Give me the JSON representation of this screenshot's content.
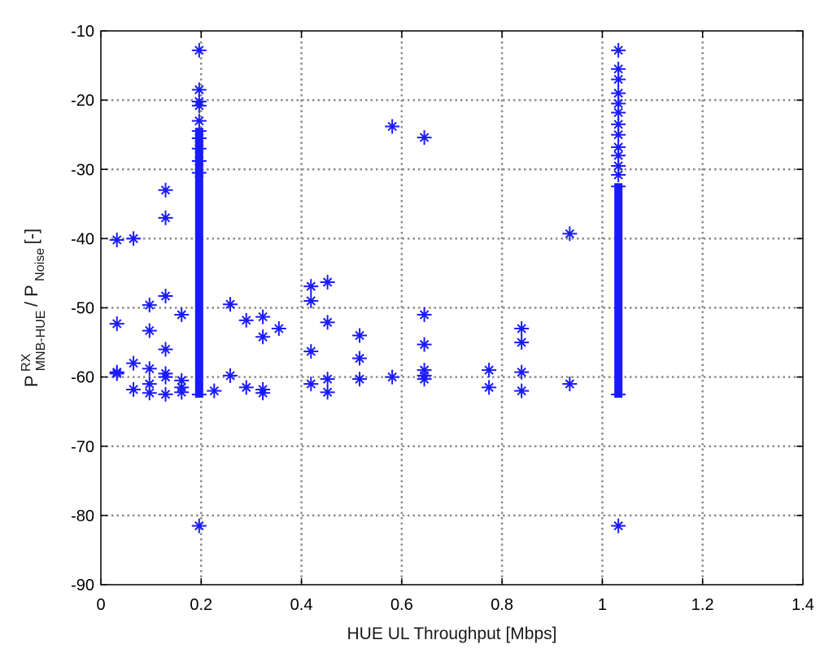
{
  "chart_data": {
    "type": "scatter",
    "title": "",
    "xlabel": "HUE UL Throughput [Mbps]",
    "ylabel": {
      "base": "P",
      "sup": "RX",
      "sub": "MNB-HUE",
      "slash": "/ P",
      "sub2": "Noise",
      "unit": " [-]"
    },
    "xlim": [
      0,
      1.4
    ],
    "ylim": [
      -90,
      -10
    ],
    "xticks": [
      "0",
      "0.2",
      "0.4",
      "0.6",
      "0.8",
      "1",
      "1.2",
      "1.4"
    ],
    "yticks": [
      "-10",
      "-20",
      "-30",
      "-40",
      "-50",
      "-60",
      "-70",
      "-80",
      "-90"
    ],
    "grid": true,
    "marker_color": "#1a1aff",
    "grid_color": "#8c8c8c",
    "columns": [
      {
        "x": 0.196,
        "y_from": -63,
        "y_to": -24
      },
      {
        "x": 1.032,
        "y_from": -63,
        "y_to": -32
      }
    ],
    "points": [
      [
        0.196,
        -12.8
      ],
      [
        0.196,
        -18.5
      ],
      [
        0.196,
        -20.2
      ],
      [
        0.196,
        -20.8
      ],
      [
        0.196,
        -23.0
      ],
      [
        0.196,
        -25.5
      ],
      [
        0.196,
        -27.0
      ],
      [
        0.196,
        -28.8
      ],
      [
        0.196,
        -30.5
      ],
      [
        0.196,
        -81.5
      ],
      [
        1.032,
        -12.8
      ],
      [
        1.032,
        -15.5
      ],
      [
        1.032,
        -17.0
      ],
      [
        1.032,
        -19.0
      ],
      [
        1.032,
        -20.5
      ],
      [
        1.032,
        -21.8
      ],
      [
        1.032,
        -23.5
      ],
      [
        1.032,
        -25.0
      ],
      [
        1.032,
        -26.8
      ],
      [
        1.032,
        -28.0
      ],
      [
        1.032,
        -29.5
      ],
      [
        1.032,
        -30.8
      ],
      [
        1.032,
        -81.5
      ],
      [
        0.032,
        -40.2
      ],
      [
        0.032,
        -52.3
      ],
      [
        0.032,
        -59.3
      ],
      [
        0.032,
        -59.5
      ],
      [
        0.065,
        -40.0
      ],
      [
        0.065,
        -58.0
      ],
      [
        0.065,
        -61.8
      ],
      [
        0.097,
        -49.6
      ],
      [
        0.097,
        -53.3
      ],
      [
        0.097,
        -58.8
      ],
      [
        0.097,
        -61.0
      ],
      [
        0.097,
        -62.3
      ],
      [
        0.129,
        -33.0
      ],
      [
        0.129,
        -37.0
      ],
      [
        0.129,
        -48.3
      ],
      [
        0.129,
        -56.0
      ],
      [
        0.129,
        -59.5
      ],
      [
        0.129,
        -60.0
      ],
      [
        0.129,
        -62.5
      ],
      [
        0.161,
        -51.0
      ],
      [
        0.161,
        -60.5
      ],
      [
        0.161,
        -61.5
      ],
      [
        0.161,
        -62.2
      ],
      [
        0.226,
        -62.0
      ],
      [
        0.258,
        -49.5
      ],
      [
        0.258,
        -59.8
      ],
      [
        0.29,
        -51.8
      ],
      [
        0.29,
        -61.5
      ],
      [
        0.323,
        -51.3
      ],
      [
        0.323,
        -54.2
      ],
      [
        0.323,
        -61.8
      ],
      [
        0.323,
        -62.3
      ],
      [
        0.355,
        -53.0
      ],
      [
        0.419,
        -46.9
      ],
      [
        0.419,
        -49.0
      ],
      [
        0.419,
        -56.3
      ],
      [
        0.419,
        -61.0
      ],
      [
        0.452,
        -46.3
      ],
      [
        0.452,
        -52.1
      ],
      [
        0.452,
        -60.3
      ],
      [
        0.452,
        -62.2
      ],
      [
        0.516,
        -54.0
      ],
      [
        0.516,
        -57.3
      ],
      [
        0.516,
        -60.3
      ],
      [
        0.581,
        -23.8
      ],
      [
        0.581,
        -60.0
      ],
      [
        0.645,
        -25.4
      ],
      [
        0.645,
        -51.0
      ],
      [
        0.645,
        -55.3
      ],
      [
        0.645,
        -59.0
      ],
      [
        0.645,
        -59.8
      ],
      [
        0.645,
        -60.3
      ],
      [
        0.774,
        -59.0
      ],
      [
        0.774,
        -61.5
      ],
      [
        0.839,
        -53.0
      ],
      [
        0.839,
        -55.0
      ],
      [
        0.839,
        -59.3
      ],
      [
        0.839,
        -62.0
      ],
      [
        0.935,
        -39.3
      ],
      [
        0.935,
        -61.0
      ]
    ]
  }
}
